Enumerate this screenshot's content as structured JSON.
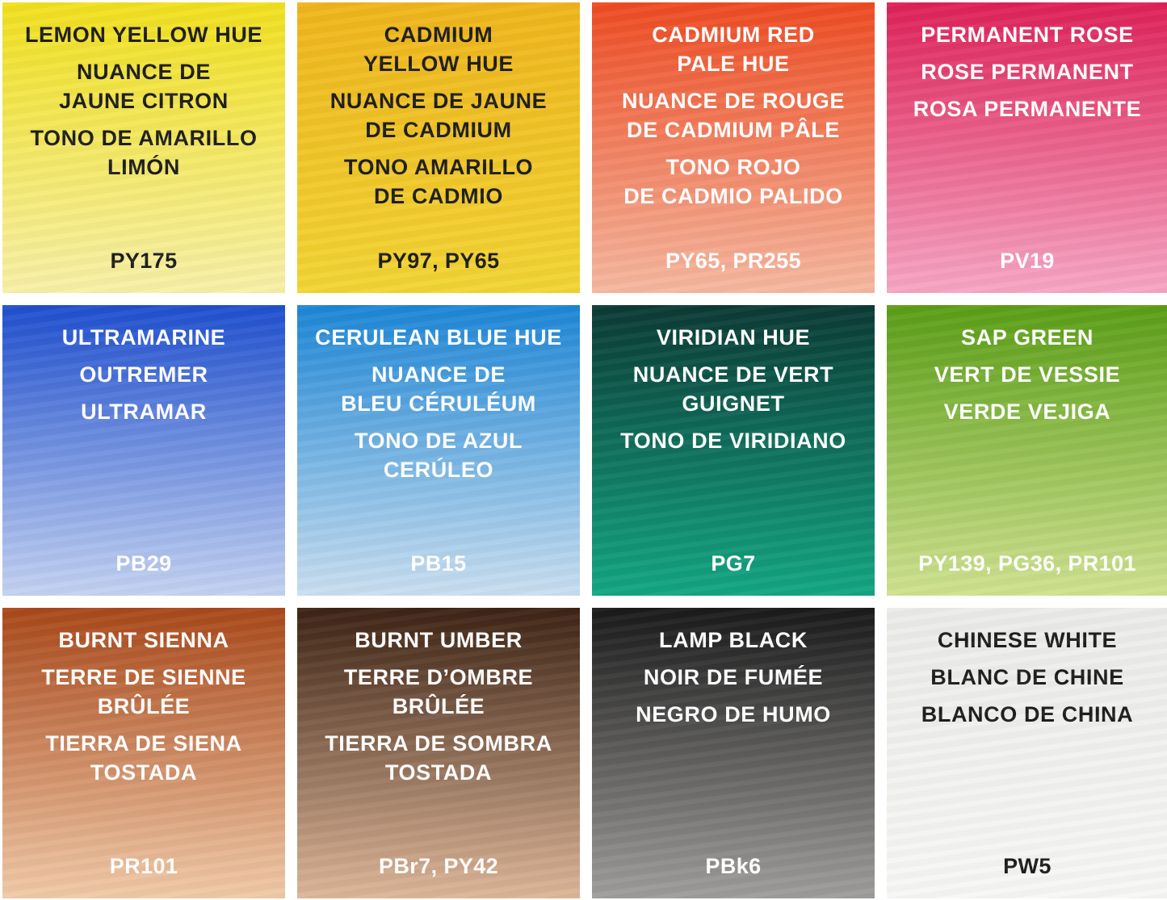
{
  "swatches": [
    {
      "groups": [
        [
          "LEMON YELLOW HUE"
        ],
        [
          "NUANCE DE",
          "JAUNE CITRON"
        ],
        [
          "TONO DE AMARILLO",
          "LIMÓN"
        ]
      ],
      "code": "PY175",
      "top": "#f1e01e",
      "bottom": "#f7f0a8",
      "text": "#1e1e1e"
    },
    {
      "groups": [
        [
          "CADMIUM",
          "YELLOW HUE"
        ],
        [
          "NUANCE DE JAUNE",
          "DE CADMIUM"
        ],
        [
          "TONO AMARILLO",
          "DE CADMIO"
        ]
      ],
      "code": "PY97, PY65",
      "top": "#efb51c",
      "bottom": "#f2d534",
      "text": "#1e1e1e"
    },
    {
      "groups": [
        [
          "CADMIUM RED",
          "PALE HUE"
        ],
        [
          "NUANCE DE ROUGE",
          "DE CADMIUM PÂLE"
        ],
        [
          "TONO ROJO",
          "DE CADMIO PALIDO"
        ]
      ],
      "code": "PY65, PR255",
      "top": "#ee4b22",
      "bottom": "#f6b8a0",
      "text": "#ffffff"
    },
    {
      "groups": [
        [
          "PERMANENT ROSE"
        ],
        [
          "ROSE PERMANENT"
        ],
        [
          "ROSA PERMANENTE"
        ]
      ],
      "code": "PV19",
      "top": "#de2158",
      "bottom": "#f7a6c4",
      "text": "#ffffff"
    },
    {
      "groups": [
        [
          "ULTRAMARINE"
        ],
        [
          "OUTREMER"
        ],
        [
          "ULTRAMAR"
        ]
      ],
      "code": "PB29",
      "top": "#1f4fcf",
      "bottom": "#c4d3f2",
      "text": "#ffffff"
    },
    {
      "groups": [
        [
          "CERULEAN BLUE HUE"
        ],
        [
          "NUANCE DE",
          "BLEU CÉRULÉUM"
        ],
        [
          "TONO DE AZUL",
          "CERÚLEO"
        ]
      ],
      "code": "PB15",
      "top": "#1c86d6",
      "bottom": "#cadff0",
      "text": "#ffffff"
    },
    {
      "groups": [
        [
          "VIRIDIAN HUE"
        ],
        [
          "NUANCE DE VERT",
          "GUIGNET"
        ],
        [
          "TONO DE VIRIDIANO"
        ]
      ],
      "code": "PG7",
      "top": "#0b3a35",
      "bottom": "#13a783",
      "text": "#ffffff"
    },
    {
      "groups": [
        [
          "SAP GREEN"
        ],
        [
          "VERT DE VESSIE"
        ],
        [
          "VERDE VEJIGA"
        ]
      ],
      "code": "PY139, PG36, PR101",
      "top": "#5a9e16",
      "bottom": "#d0e290",
      "text": "#ffffff"
    },
    {
      "groups": [
        [
          "BURNT SIENNA"
        ],
        [
          "TERRE DE SIENNE",
          "BRÛLÉE"
        ],
        [
          "TIERRA DE SIENA",
          "TOSTADA"
        ]
      ],
      "code": "PR101",
      "top": "#a9481a",
      "bottom": "#f1caa8",
      "text": "#ffffff"
    },
    {
      "groups": [
        [
          "BURNT UMBER"
        ],
        [
          "TERRE D’OMBRE",
          "BRÛLÉE"
        ],
        [
          "TIERRA DE SOMBRA",
          "TOSTADA"
        ]
      ],
      "code": "PBr7, PY42",
      "top": "#3d2314",
      "bottom": "#deb698",
      "text": "#ffffff"
    },
    {
      "groups": [
        [
          "LAMP BLACK"
        ],
        [
          "NOIR DE FUMÉE"
        ],
        [
          "NEGRO DE HUMO"
        ]
      ],
      "code": "PBk6",
      "top": "#1a1a1a",
      "bottom": "#a09e9c",
      "text": "#ffffff"
    },
    {
      "groups": [
        [
          "CHINESE WHITE"
        ],
        [
          "BLANC DE CHINE"
        ],
        [
          "BLANCO DE CHINA"
        ]
      ],
      "code": "PW5",
      "top": "#ebebe9",
      "bottom": "#f7f7f5",
      "text": "#1e1e1e"
    }
  ]
}
